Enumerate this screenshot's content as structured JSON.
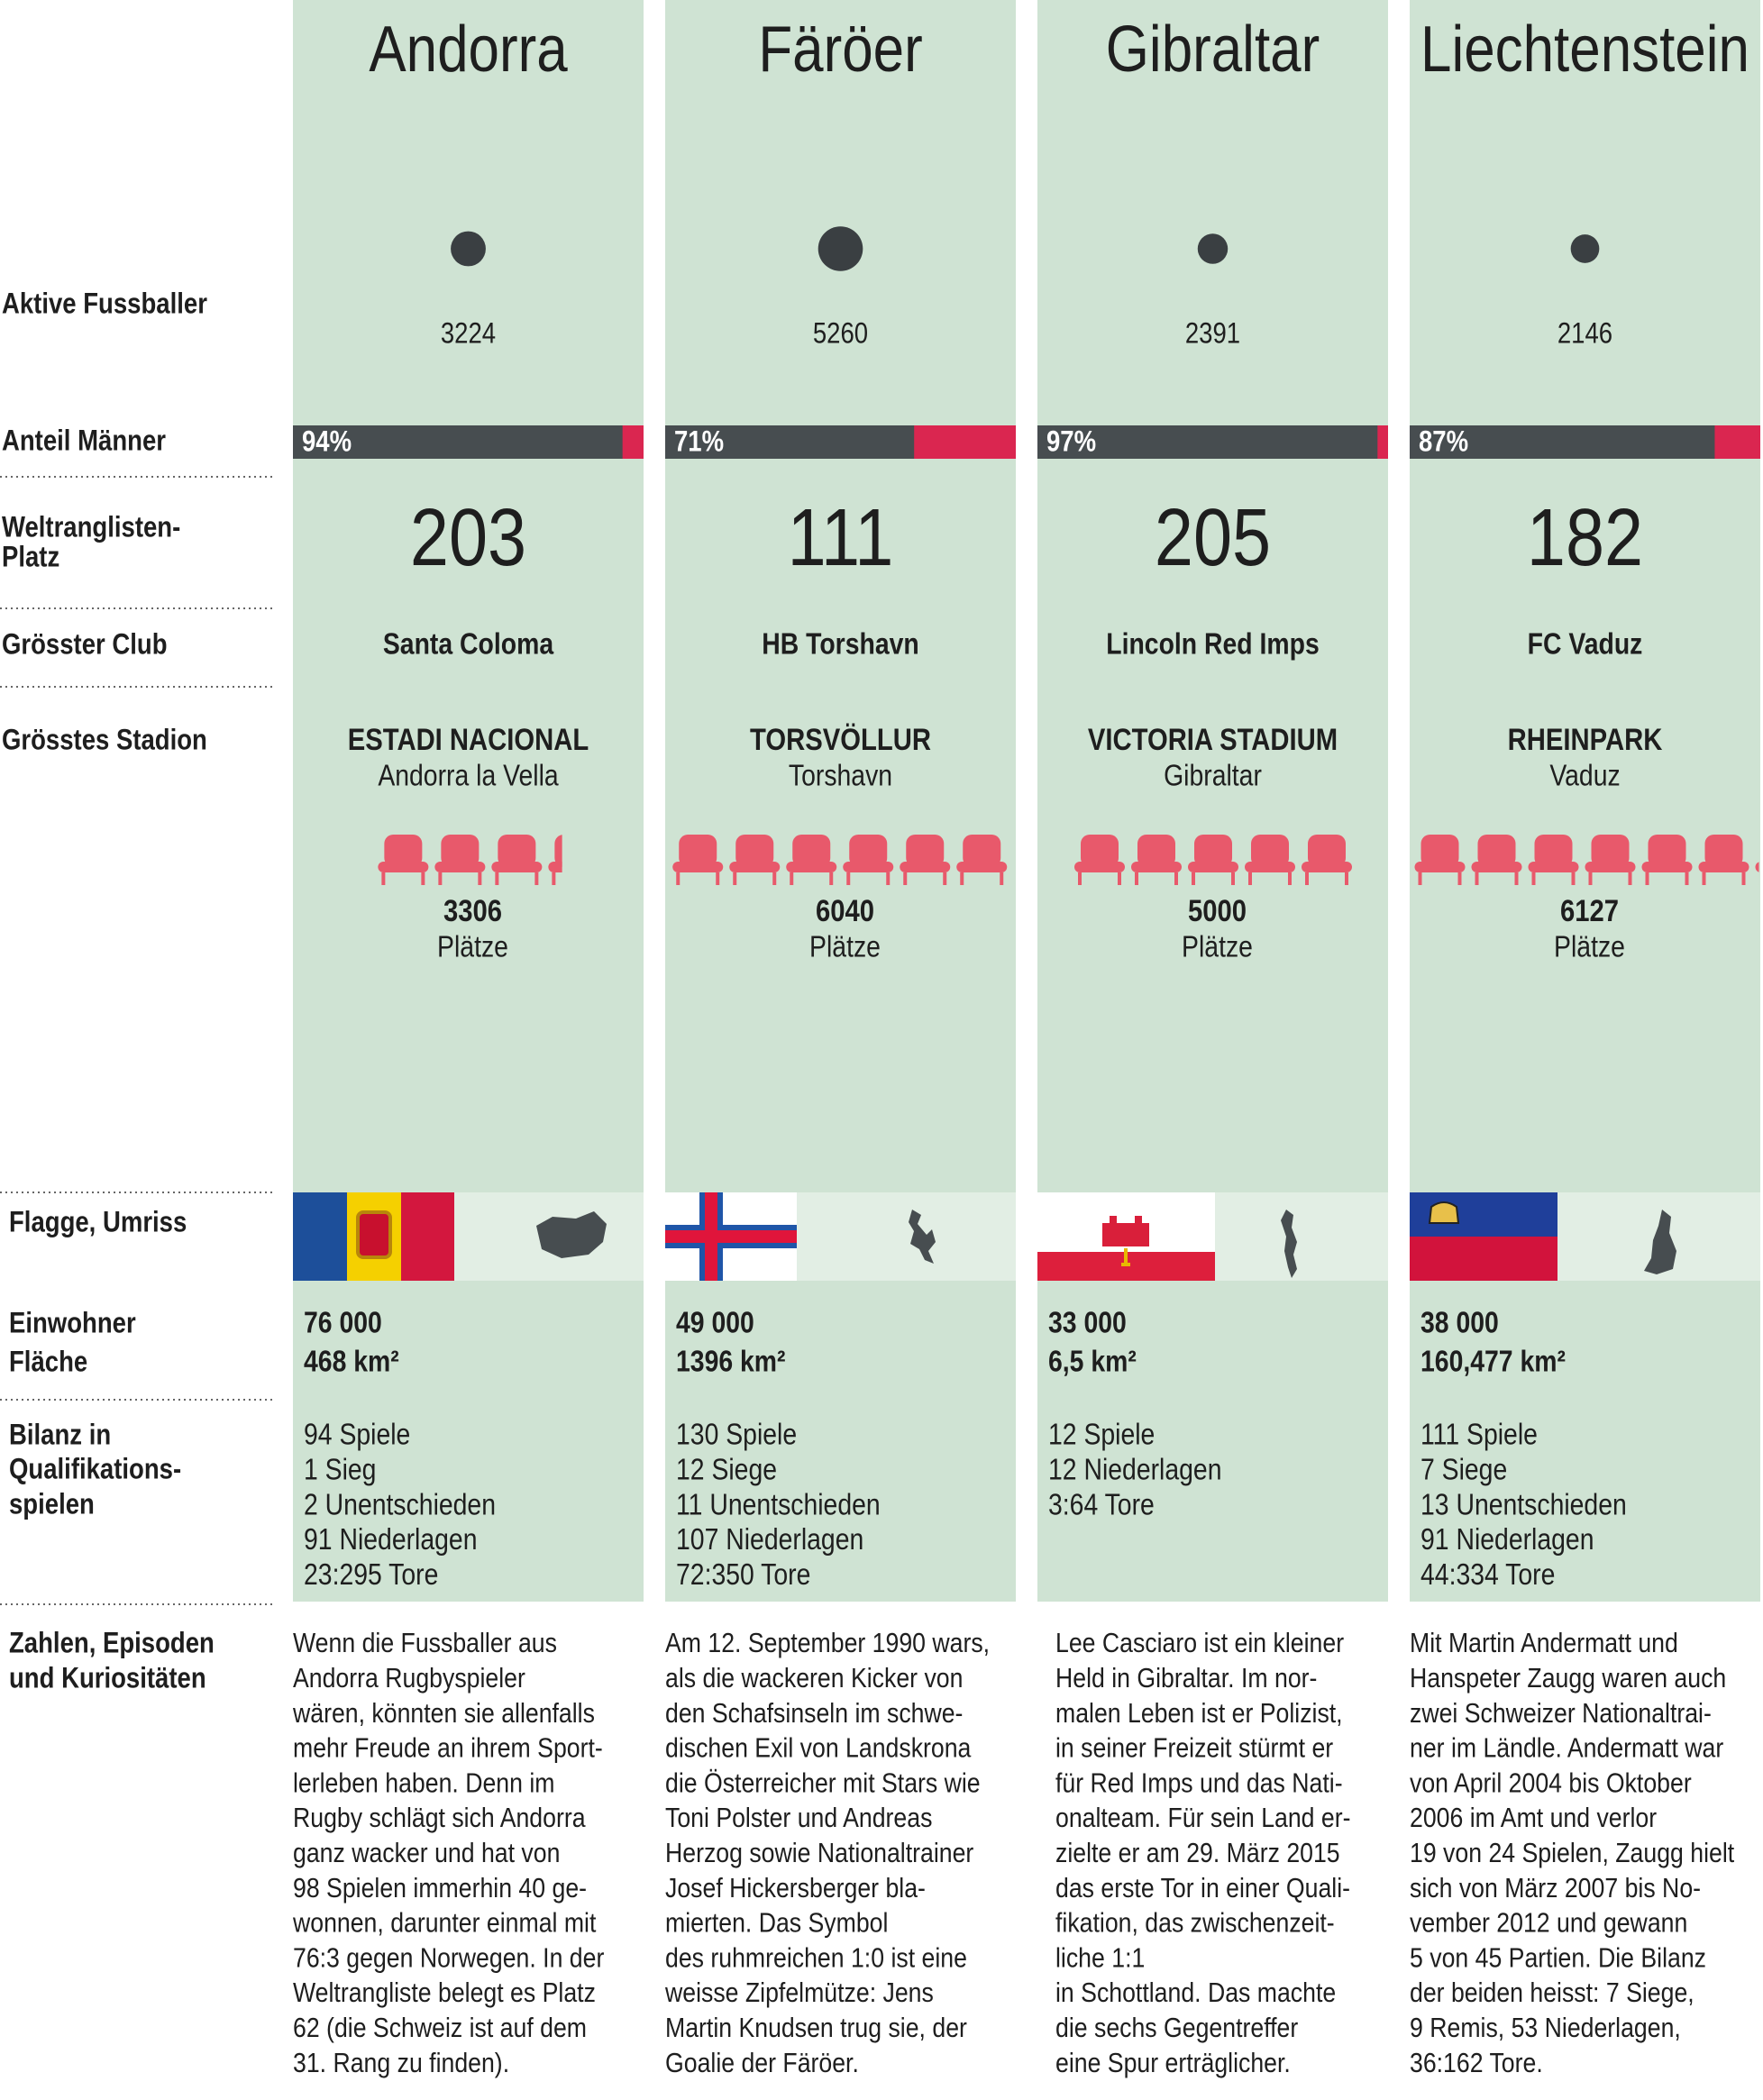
{
  "row_labels": {
    "players": [
      "Aktive Fussballer"
    ],
    "men_share": [
      "Anteil Männer"
    ],
    "rank": [
      "Weltranglisten-",
      "Platz"
    ],
    "club": [
      "Grösster Club"
    ],
    "stadium": [
      "Grösstes Stadion"
    ],
    "flag": [
      "Flagge, Umriss"
    ],
    "population": [
      "Einwohner",
      "Fläche"
    ],
    "record": [
      "Bilanz in",
      "Qualifikations-",
      "spielen"
    ],
    "notes": [
      "Zahlen, Episoden",
      "und Kuriositäten"
    ]
  },
  "countries": [
    {
      "name": "Andorra",
      "players": 3224,
      "men_share": {
        "value": 94,
        "label": "94%"
      },
      "rank": 203,
      "club": "Santa Coloma",
      "stadium": "ESTADI NACIONAL",
      "city": "Andorra la Vella",
      "seats": 3306,
      "seats_unit": "Plätze",
      "population": "76 000",
      "area": "468 km²",
      "record": [
        "94 Spiele",
        "1 Sieg",
        "2 Unentschieden",
        "91 Niederlagen",
        "23:295 Tore"
      ],
      "notes": [
        "Wenn die Fussballer aus",
        "Andorra Rugbyspieler",
        "wären, könnten sie allenfalls",
        "mehr Freude an ihrem Sport-",
        "lerleben haben. Denn im",
        "Rugby schlägt sich Andorra",
        "ganz wacker und hat von",
        "98 Spielen immerhin 40 ge-",
        "wonnen, darunter einmal mit",
        "76:3 gegen Norwegen. In der",
        "Weltrangliste belegt es Platz",
        "62 (die Schweiz ist auf dem",
        "31. Rang zu finden)."
      ]
    },
    {
      "name": "Färöer",
      "players": 5260,
      "men_share": {
        "value": 71,
        "label": "71%"
      },
      "rank": 111,
      "club": "HB Torshavn",
      "stadium": "TORSVÖLLUR",
      "city": "Torshavn",
      "seats": 6040,
      "seats_unit": "Plätze",
      "population": "49 000",
      "area": "1396 km²",
      "record": [
        "130 Spiele",
        "12 Siege",
        "11 Unentschieden",
        "107 Niederlagen",
        "72:350 Tore"
      ],
      "notes": [
        "Am 12. September 1990 wars,",
        "als die wackeren Kicker von",
        "den Schafsinseln im schwe-",
        "dischen Exil von Landskrona",
        "die Österreicher mit Stars wie",
        "Toni Polster und Andreas",
        "Herzog sowie Nationaltrainer",
        "Josef Hickersberger bla-",
        "mierten. Das Symbol",
        "des ruhmreichen 1:0 ist eine",
        "weisse Zipfelmütze: Jens",
        "Martin Knudsen trug sie, der",
        "Goalie der Färöer."
      ]
    },
    {
      "name": "Gibraltar",
      "players": 2391,
      "men_share": {
        "value": 97,
        "label": "97%"
      },
      "rank": 205,
      "club": "Lincoln Red Imps",
      "stadium": "VICTORIA STADIUM",
      "city": "Gibraltar",
      "seats": 5000,
      "seats_unit": "Plätze",
      "population": "33 000",
      "area": "6,5 km²",
      "record": [
        "12 Spiele",
        "12 Niederlagen",
        "3:64 Tore"
      ],
      "notes": [
        "Lee Casciaro ist ein kleiner",
        "Held in Gibraltar. Im nor-",
        "malen Leben ist er Polizist,",
        "in seiner Freizeit stürmt er",
        "für Red Imps  und das Nati-",
        "onalteam. Für sein Land er-",
        "zielte er am 29. März 2015",
        "das erste Tor in einer Quali-",
        "fikation, das zwischenzeit-",
        "liche 1:1",
        "in Schottland. Das machte",
        "die sechs Gegentreffer",
        "eine Spur erträglicher."
      ]
    },
    {
      "name": "Liechtenstein",
      "players": 2146,
      "men_share": {
        "value": 87,
        "label": "87%"
      },
      "rank": 182,
      "club": "FC Vaduz",
      "stadium": "RHEINPARK",
      "city": "Vaduz",
      "seats": 6127,
      "seats_unit": "Plätze",
      "population": "38 000",
      "area": "160,477 km²",
      "record": [
        "111 Spiele",
        "7 Siege",
        "13 Unentschieden",
        "91 Niederlagen",
        "44:334 Tore"
      ],
      "notes": [
        "Mit Martin Andermatt und",
        "Hanspeter Zaugg waren auch",
        "zwei Schweizer Nationaltrai-",
        "ner im Ländle. Andermatt war",
        "von April 2004 bis Oktober",
        "2006 im Amt und verlor",
        "19 von 24 Spielen, Zaugg hielt",
        "sich von März 2007 bis No-",
        "vember 2012 und gewann",
        "5 von 45 Partien. Die Bilanz",
        "der beiden heisst: 7 Siege,",
        "9 Remis, 53 Niederlagen,",
        "36:162 Tore."
      ]
    }
  ]
}
